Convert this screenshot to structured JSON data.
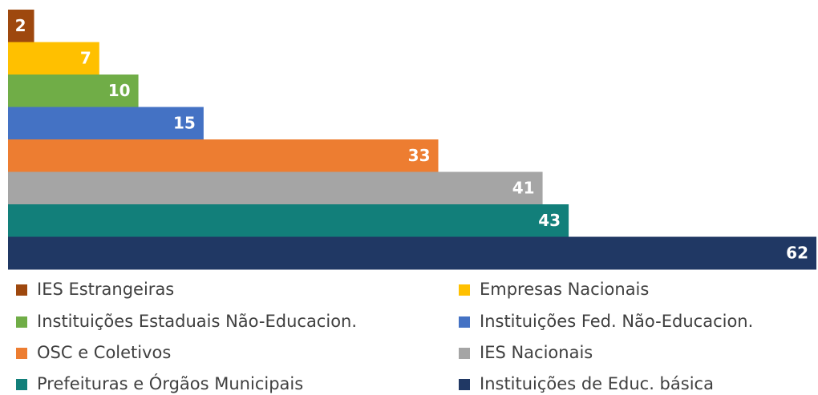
{
  "chart_data": {
    "type": "bar",
    "orientation": "horizontal",
    "categories": [
      "IES Estrangeiras",
      "Empresas Nacionais",
      "Instituições Estaduais Não-Educacion.",
      "Instituições Fed. Não-Educacion.",
      "OSC e Coletivos",
      "IES Nacionais",
      "Prefeituras e Órgãos Municipais",
      "Instituições de Educ. básica"
    ],
    "values": [
      2,
      7,
      10,
      15,
      33,
      41,
      43,
      62
    ],
    "colors": [
      "#9e480e",
      "#ffc000",
      "#70ad47",
      "#4472c4",
      "#ed7d31",
      "#a5a5a5",
      "#127f7a",
      "#203864"
    ],
    "legend": "bottom"
  }
}
